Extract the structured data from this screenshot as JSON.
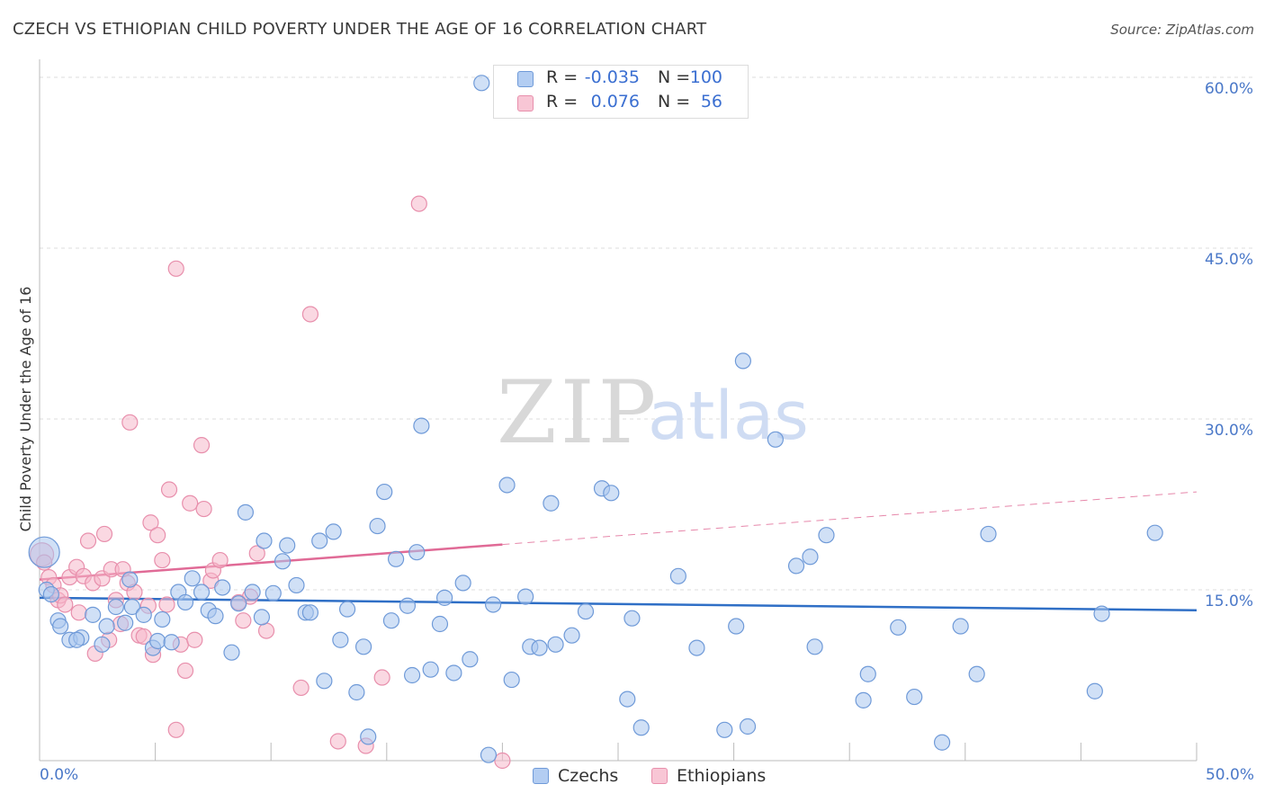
{
  "header": {
    "title": "CZECH VS ETHIOPIAN CHILD POVERTY UNDER THE AGE OF 16 CORRELATION CHART",
    "source": "Source: ZipAtlas.com"
  },
  "watermark": {
    "zip": "ZIP",
    "atlas": "atlas"
  },
  "legend_top": {
    "czech": {
      "r_label": "R =",
      "r_value": "-0.035",
      "n_label": "N =",
      "n_value": "100"
    },
    "ethiopian": {
      "r_label": "R =",
      "r_value": "0.076",
      "n_label": "N =",
      "n_value": "56"
    }
  },
  "legend_bottom": {
    "czech": "Czechs",
    "ethiopian": "Ethiopians"
  },
  "x_axis": {
    "min_label": "0.0%",
    "max_label": "50.0%"
  },
  "colors": {
    "czech_fill": "#a9c6ef",
    "czech_stroke": "#6f9ad8",
    "czech_line": "#2f6fc6",
    "ethiopian_fill": "#f6b8cb",
    "ethiopian_stroke": "#e88fac",
    "ethiopian_line": "#e06a96",
    "tick_text": "#4a78c8"
  },
  "chart_data": {
    "type": "scatter",
    "title": "CZECH VS ETHIOPIAN CHILD POVERTY UNDER THE AGE OF 16 CORRELATION CHART",
    "xlabel": "",
    "ylabel": "Child Poverty Under the Age of 16",
    "xlim": [
      0,
      50
    ],
    "ylim": [
      0,
      60
    ],
    "y_ticks": [
      15,
      30,
      45,
      60
    ],
    "y_tick_labels": [
      "15.0%",
      "30.0%",
      "45.0%",
      "60.0%"
    ],
    "grid": "horizontal dashed",
    "legend_position": "top-center",
    "series": [
      {
        "name": "Czechs",
        "r": -0.035,
        "n": 100,
        "trend": {
          "x": [
            0,
            50
          ],
          "y": [
            14.3,
            13.2
          ]
        },
        "points": [
          [
            0.2,
            18.3
          ],
          [
            0.3,
            15.0
          ],
          [
            0.5,
            14.6
          ],
          [
            0.8,
            12.3
          ],
          [
            0.9,
            11.8
          ],
          [
            1.3,
            10.6
          ],
          [
            1.8,
            10.8
          ],
          [
            1.6,
            10.6
          ],
          [
            2.3,
            12.8
          ],
          [
            2.7,
            10.2
          ],
          [
            2.9,
            11.8
          ],
          [
            3.3,
            13.5
          ],
          [
            3.7,
            12.1
          ],
          [
            3.9,
            15.9
          ],
          [
            4.0,
            13.5
          ],
          [
            4.5,
            12.8
          ],
          [
            4.9,
            9.9
          ],
          [
            5.1,
            10.5
          ],
          [
            5.3,
            12.4
          ],
          [
            5.7,
            10.4
          ],
          [
            6.0,
            14.8
          ],
          [
            6.3,
            13.9
          ],
          [
            6.6,
            16.0
          ],
          [
            7.0,
            14.8
          ],
          [
            7.3,
            13.2
          ],
          [
            7.6,
            12.7
          ],
          [
            7.9,
            15.2
          ],
          [
            8.3,
            9.5
          ],
          [
            8.6,
            13.8
          ],
          [
            8.9,
            21.8
          ],
          [
            9.2,
            14.8
          ],
          [
            9.6,
            12.6
          ],
          [
            9.7,
            19.3
          ],
          [
            10.1,
            14.7
          ],
          [
            10.5,
            17.5
          ],
          [
            10.7,
            18.9
          ],
          [
            11.1,
            15.4
          ],
          [
            11.5,
            13.0
          ],
          [
            11.7,
            13.0
          ],
          [
            12.1,
            19.3
          ],
          [
            12.3,
            7.0
          ],
          [
            12.7,
            20.1
          ],
          [
            13.0,
            10.6
          ],
          [
            13.3,
            13.3
          ],
          [
            13.7,
            6.0
          ],
          [
            14.0,
            10.0
          ],
          [
            14.2,
            2.1
          ],
          [
            14.6,
            20.6
          ],
          [
            14.9,
            23.6
          ],
          [
            15.2,
            12.3
          ],
          [
            15.4,
            17.7
          ],
          [
            15.9,
            13.6
          ],
          [
            16.1,
            7.5
          ],
          [
            16.3,
            18.3
          ],
          [
            16.5,
            29.4
          ],
          [
            16.9,
            8.0
          ],
          [
            17.3,
            12.0
          ],
          [
            17.5,
            14.3
          ],
          [
            17.9,
            7.7
          ],
          [
            18.3,
            15.6
          ],
          [
            18.6,
            8.9
          ],
          [
            19.1,
            59.5
          ],
          [
            19.4,
            0.5
          ],
          [
            19.6,
            13.7
          ],
          [
            20.2,
            24.2
          ],
          [
            20.4,
            7.1
          ],
          [
            21.0,
            14.4
          ],
          [
            21.2,
            10.0
          ],
          [
            21.6,
            9.9
          ],
          [
            22.1,
            22.6
          ],
          [
            22.3,
            10.2
          ],
          [
            23.0,
            11.0
          ],
          [
            23.6,
            13.1
          ],
          [
            24.3,
            23.9
          ],
          [
            24.7,
            23.5
          ],
          [
            25.4,
            5.4
          ],
          [
            25.6,
            12.5
          ],
          [
            26.0,
            2.9
          ],
          [
            27.6,
            16.2
          ],
          [
            28.4,
            9.9
          ],
          [
            29.6,
            2.7
          ],
          [
            30.1,
            11.8
          ],
          [
            30.4,
            35.1
          ],
          [
            30.6,
            3.0
          ],
          [
            31.8,
            28.2
          ],
          [
            32.7,
            17.1
          ],
          [
            33.3,
            17.9
          ],
          [
            33.5,
            10.0
          ],
          [
            34.0,
            19.8
          ],
          [
            35.6,
            5.3
          ],
          [
            35.8,
            7.6
          ],
          [
            37.1,
            11.7
          ],
          [
            37.8,
            5.6
          ],
          [
            39.0,
            1.6
          ],
          [
            39.8,
            11.8
          ],
          [
            40.5,
            7.6
          ],
          [
            41.0,
            19.9
          ],
          [
            45.6,
            6.1
          ],
          [
            45.9,
            12.9
          ],
          [
            48.2,
            20.0
          ]
        ]
      },
      {
        "name": "Ethiopians",
        "r": 0.076,
        "n": 56,
        "trend": {
          "x": [
            0,
            50
          ],
          "y": [
            15.9,
            23.6
          ]
        },
        "points": [
          [
            0.1,
            18.1
          ],
          [
            0.2,
            17.4
          ],
          [
            0.4,
            16.1
          ],
          [
            0.6,
            15.4
          ],
          [
            0.8,
            14.1
          ],
          [
            0.9,
            14.5
          ],
          [
            1.1,
            13.7
          ],
          [
            1.3,
            16.1
          ],
          [
            1.6,
            17.0
          ],
          [
            1.7,
            13.0
          ],
          [
            1.9,
            16.2
          ],
          [
            2.1,
            19.3
          ],
          [
            2.3,
            15.6
          ],
          [
            2.4,
            9.4
          ],
          [
            2.7,
            16.0
          ],
          [
            2.8,
            19.9
          ],
          [
            3.0,
            10.6
          ],
          [
            3.1,
            16.8
          ],
          [
            3.3,
            14.1
          ],
          [
            3.5,
            12.0
          ],
          [
            3.6,
            16.8
          ],
          [
            3.8,
            15.6
          ],
          [
            3.9,
            29.7
          ],
          [
            4.1,
            14.8
          ],
          [
            4.3,
            11.0
          ],
          [
            4.5,
            10.9
          ],
          [
            4.7,
            13.6
          ],
          [
            4.8,
            20.9
          ],
          [
            4.9,
            9.3
          ],
          [
            5.1,
            19.8
          ],
          [
            5.3,
            17.6
          ],
          [
            5.5,
            13.7
          ],
          [
            5.6,
            23.8
          ],
          [
            5.9,
            2.7
          ],
          [
            5.9,
            43.2
          ],
          [
            6.1,
            10.2
          ],
          [
            6.3,
            7.9
          ],
          [
            6.5,
            22.6
          ],
          [
            6.7,
            10.6
          ],
          [
            7.0,
            27.7
          ],
          [
            7.1,
            22.1
          ],
          [
            7.4,
            15.8
          ],
          [
            7.5,
            16.7
          ],
          [
            7.8,
            17.6
          ],
          [
            8.6,
            13.9
          ],
          [
            8.8,
            12.3
          ],
          [
            9.1,
            14.4
          ],
          [
            9.4,
            18.2
          ],
          [
            9.8,
            11.4
          ],
          [
            11.3,
            6.4
          ],
          [
            11.7,
            39.2
          ],
          [
            12.9,
            1.7
          ],
          [
            14.1,
            1.3
          ],
          [
            14.8,
            7.3
          ],
          [
            16.4,
            48.9
          ],
          [
            20.0,
            0.0
          ]
        ]
      }
    ]
  }
}
